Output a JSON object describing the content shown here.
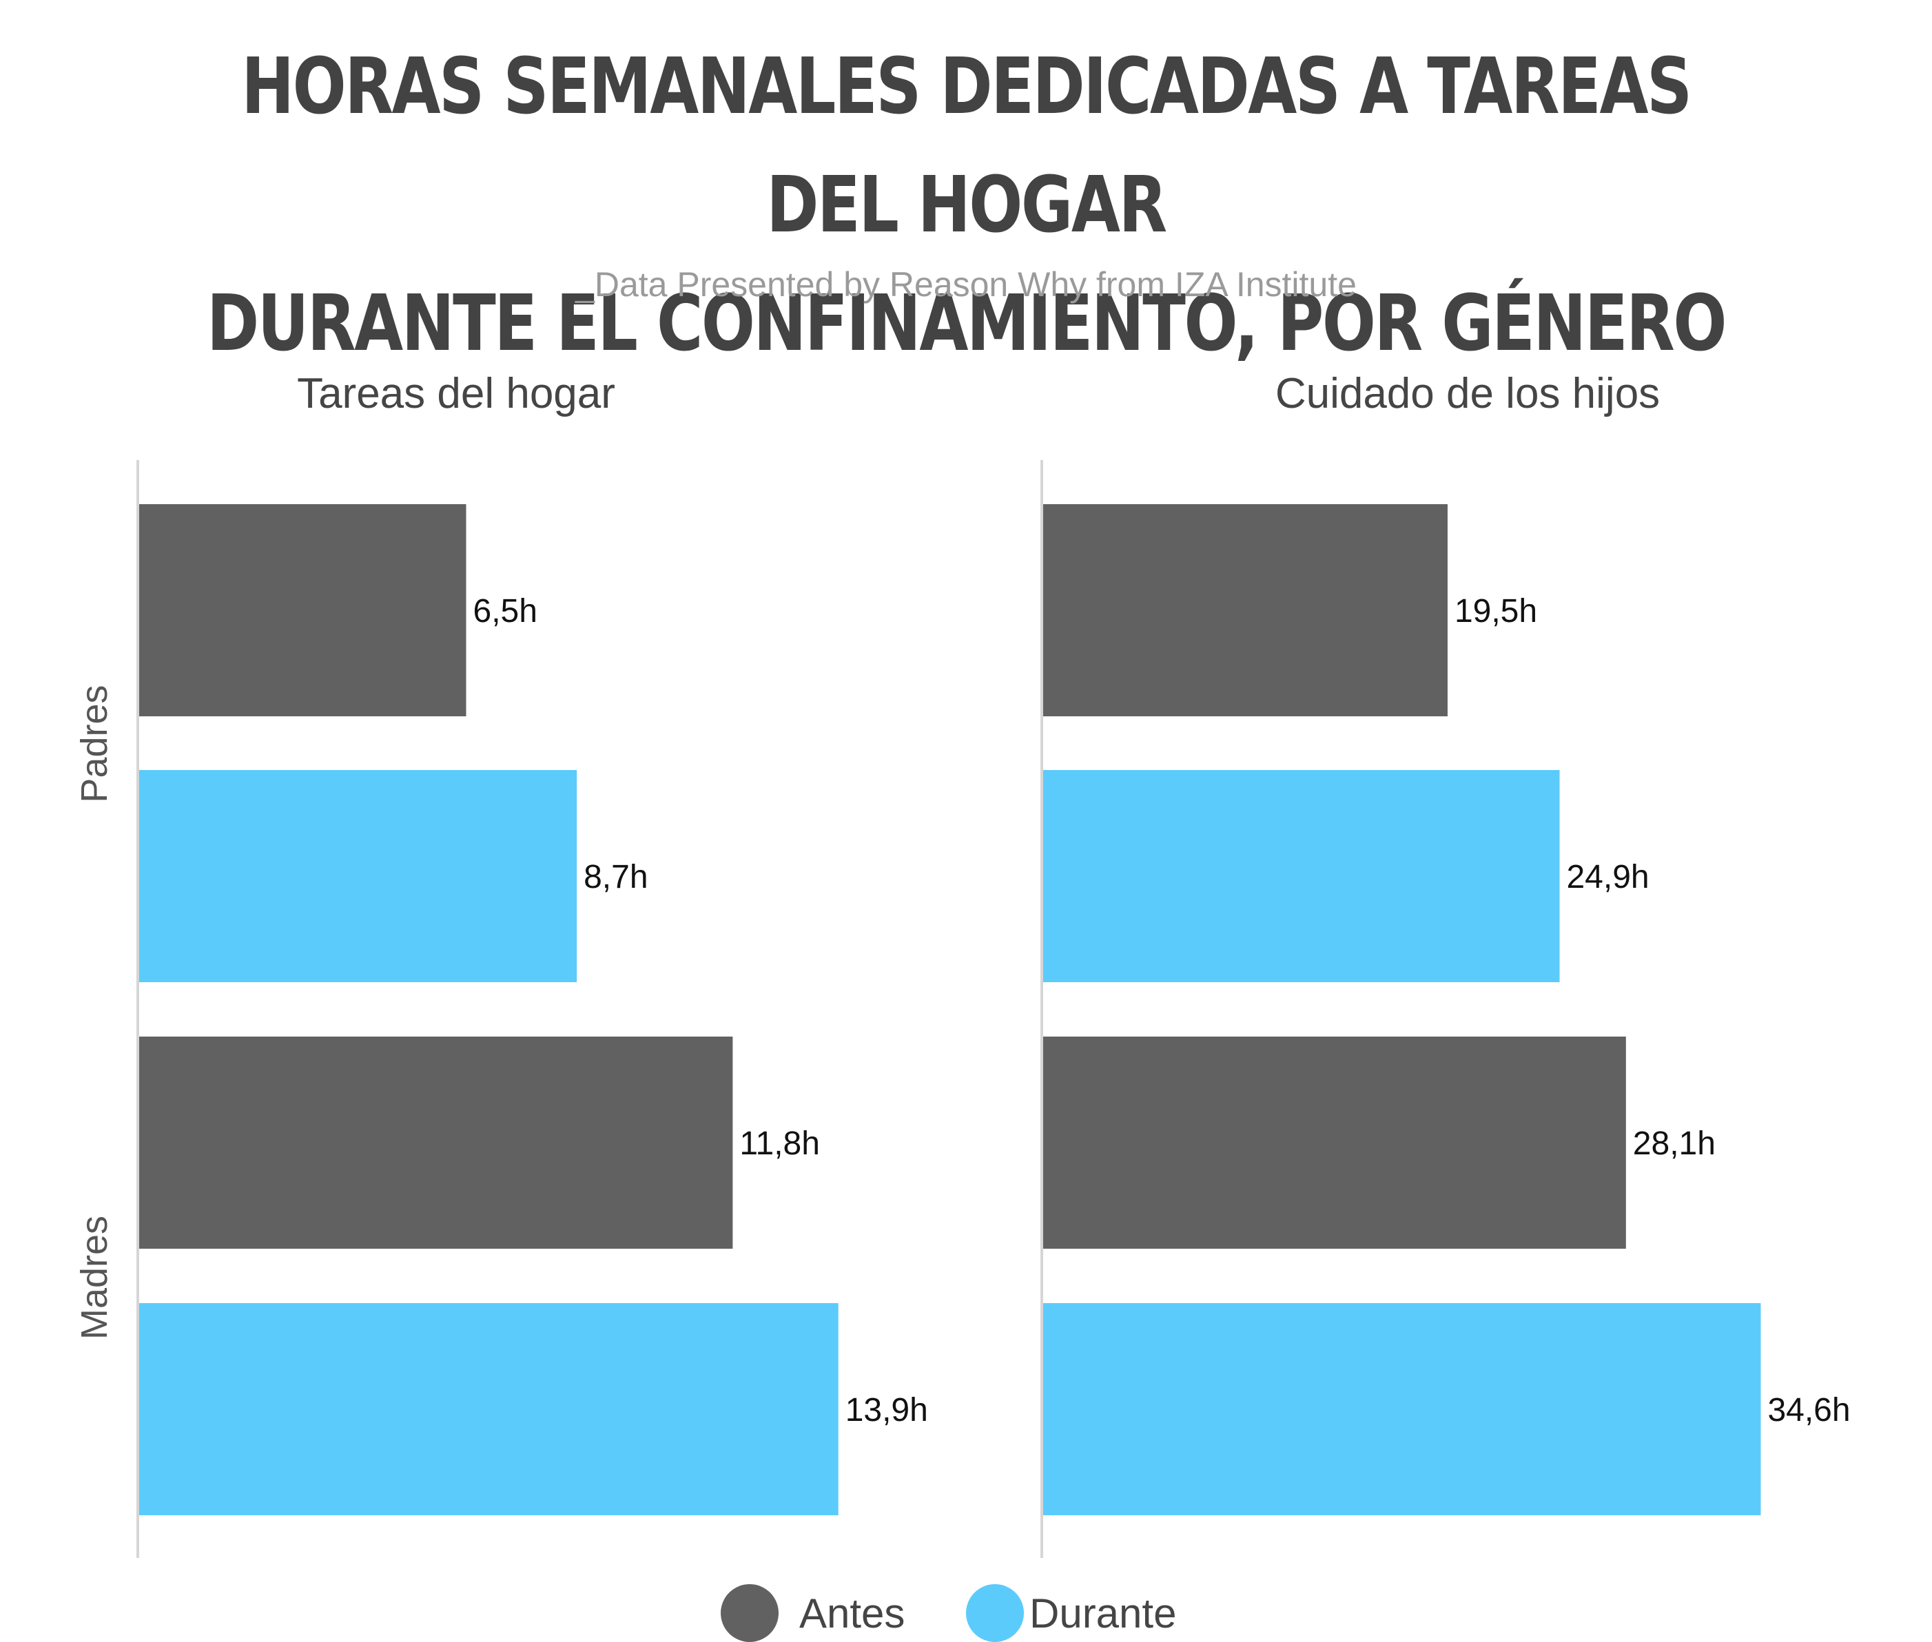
{
  "header": {
    "title_line1": "HORAS SEMANALES DEDICADAS A TAREAS DEL HOGAR",
    "title_line2": "DURANTE EL CONFINAMIENTO, POR GÉNERO",
    "subtitle": "_Data Presented by Reason Why from IZA Institute"
  },
  "colors": {
    "antes": "#616161",
    "durante": "#5bcbfc",
    "axis": "#d6d6d6"
  },
  "chart_data": [
    {
      "type": "bar",
      "orientation": "horizontal",
      "title": "Tareas del hogar",
      "categories": [
        "Padres",
        "Madres"
      ],
      "series": [
        {
          "name": "Antes",
          "values": [
            6.5,
            11.8
          ],
          "labels": [
            "6,5h",
            "11,8h"
          ]
        },
        {
          "name": "Durante",
          "values": [
            8.7,
            13.9
          ],
          "labels": [
            "8,7h",
            "13,9h"
          ]
        }
      ],
      "unit": "h",
      "grid": false,
      "legend": "bottom-center"
    },
    {
      "type": "bar",
      "orientation": "horizontal",
      "title": "Cuidado de los hijos",
      "categories": [
        "Padres",
        "Madres"
      ],
      "series": [
        {
          "name": "Antes",
          "values": [
            19.5,
            28.1
          ],
          "labels": [
            "19,5h",
            "28,1h"
          ]
        },
        {
          "name": "Durante",
          "values": [
            24.9,
            34.6
          ],
          "labels": [
            "24,9h",
            "34,6h"
          ]
        }
      ],
      "unit": "h",
      "grid": false,
      "legend": "bottom-center"
    }
  ],
  "legend": {
    "items": [
      {
        "label": "Antes",
        "color": "#616161"
      },
      {
        "label": "Durante",
        "color": "#5bcbfc"
      }
    ]
  }
}
